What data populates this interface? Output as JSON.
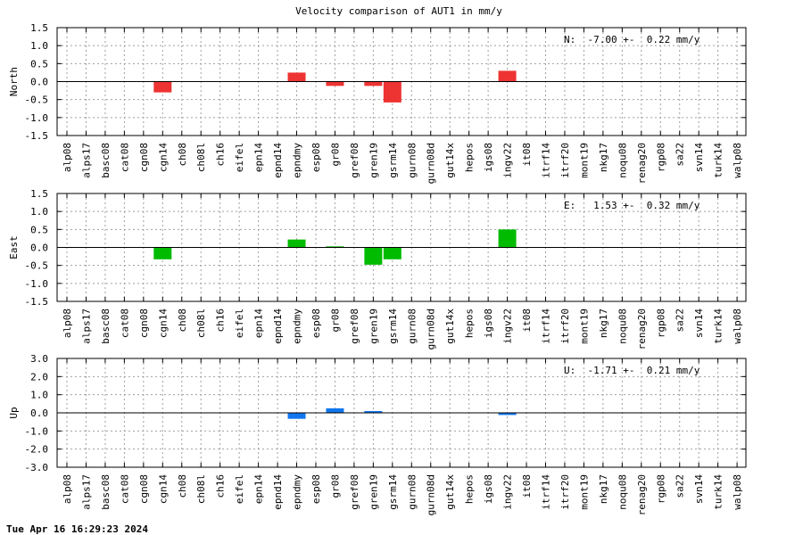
{
  "title": "Velocity comparison of AUT1 in mm/y",
  "footer": "Tue Apr 16 16:29:23 2024",
  "chart_data": [
    {
      "type": "bar",
      "ylabel": "North",
      "annotation": "N:  -7.00 +-  0.22 mm/y",
      "color": "#ee3333",
      "ylim": [
        -1.5,
        1.5
      ],
      "yticks": [
        -1.5,
        -1.0,
        -0.5,
        0.0,
        0.5,
        1.0,
        1.5
      ],
      "ytick_labels": [
        "-1.5",
        "-1.0",
        "-0.5",
        "0.0",
        "0.5",
        "1.0",
        "1.5"
      ],
      "grid": true,
      "categories": [
        "alp08",
        "alps17",
        "basc08",
        "cat08",
        "cgn08",
        "cgn14",
        "ch08",
        "ch08l",
        "ch16",
        "eifel",
        "epn14",
        "epnd14",
        "epndmy",
        "esp08",
        "gr08",
        "gref08",
        "gren19",
        "gsrm14",
        "gurn08",
        "gurn08d",
        "gut14x",
        "hepos",
        "igs08",
        "ingv22",
        "it08",
        "itrf14",
        "itrf20",
        "mont19",
        "nkg17",
        "noqu08",
        "renag20",
        "rgp08",
        "sa22",
        "svn14",
        "turk14",
        "walp08"
      ],
      "values": [
        null,
        null,
        null,
        null,
        null,
        -0.3,
        null,
        null,
        null,
        null,
        null,
        null,
        0.25,
        null,
        -0.12,
        null,
        -0.12,
        -0.58,
        null,
        null,
        null,
        null,
        null,
        0.3,
        null,
        null,
        null,
        null,
        null,
        null,
        null,
        null,
        null,
        null,
        null,
        null
      ]
    },
    {
      "type": "bar",
      "ylabel": "East",
      "annotation": "E:   1.53 +-  0.32 mm/y",
      "color": "#00bb00",
      "ylim": [
        -1.5,
        1.5
      ],
      "yticks": [
        -1.5,
        -1.0,
        -0.5,
        0.0,
        0.5,
        1.0,
        1.5
      ],
      "ytick_labels": [
        "-1.5",
        "-1.0",
        "-0.5",
        "0.0",
        "0.5",
        "1.0",
        "1.5"
      ],
      "grid": true,
      "categories": [
        "alp08",
        "alps17",
        "basc08",
        "cat08",
        "cgn08",
        "cgn14",
        "ch08",
        "ch08l",
        "ch16",
        "eifel",
        "epn14",
        "epnd14",
        "epndmy",
        "esp08",
        "gr08",
        "gref08",
        "gren19",
        "gsrm14",
        "gurn08",
        "gurn08d",
        "gut14x",
        "hepos",
        "igs08",
        "ingv22",
        "it08",
        "itrf14",
        "itrf20",
        "mont19",
        "nkg17",
        "noqu08",
        "renag20",
        "rgp08",
        "sa22",
        "svn14",
        "turk14",
        "walp08"
      ],
      "values": [
        null,
        null,
        null,
        null,
        null,
        -0.33,
        null,
        null,
        null,
        null,
        null,
        null,
        0.22,
        null,
        0.03,
        null,
        -0.48,
        -0.33,
        null,
        null,
        null,
        null,
        null,
        0.5,
        null,
        null,
        null,
        null,
        null,
        null,
        null,
        null,
        null,
        null,
        null,
        null
      ]
    },
    {
      "type": "bar",
      "ylabel": "Up",
      "annotation": "U:  -1.71 +-  0.21 mm/y",
      "color": "#1177ee",
      "ylim": [
        -3.0,
        3.0
      ],
      "yticks": [
        -3.0,
        -2.0,
        -1.0,
        0.0,
        1.0,
        2.0,
        3.0
      ],
      "ytick_labels": [
        "-3.0",
        "-2.0",
        "-1.0",
        "0.0",
        "1.0",
        "2.0",
        "3.0"
      ],
      "grid": true,
      "categories": [
        "alp08",
        "alps17",
        "basc08",
        "cat08",
        "cgn08",
        "cgn14",
        "ch08",
        "ch08l",
        "ch16",
        "eifel",
        "epn14",
        "epnd14",
        "epndmy",
        "esp08",
        "gr08",
        "gref08",
        "gren19",
        "gsrm14",
        "gurn08",
        "gurn08d",
        "gut14x",
        "hepos",
        "igs08",
        "ingv22",
        "it08",
        "itrf14",
        "itrf20",
        "mont19",
        "nkg17",
        "noqu08",
        "renag20",
        "rgp08",
        "sa22",
        "svn14",
        "turk14",
        "walp08"
      ],
      "values": [
        null,
        null,
        null,
        null,
        null,
        null,
        null,
        null,
        null,
        null,
        null,
        null,
        -0.33,
        null,
        0.25,
        null,
        0.1,
        null,
        null,
        null,
        null,
        null,
        null,
        -0.12,
        null,
        null,
        null,
        null,
        null,
        null,
        null,
        null,
        null,
        null,
        null,
        null
      ]
    }
  ]
}
